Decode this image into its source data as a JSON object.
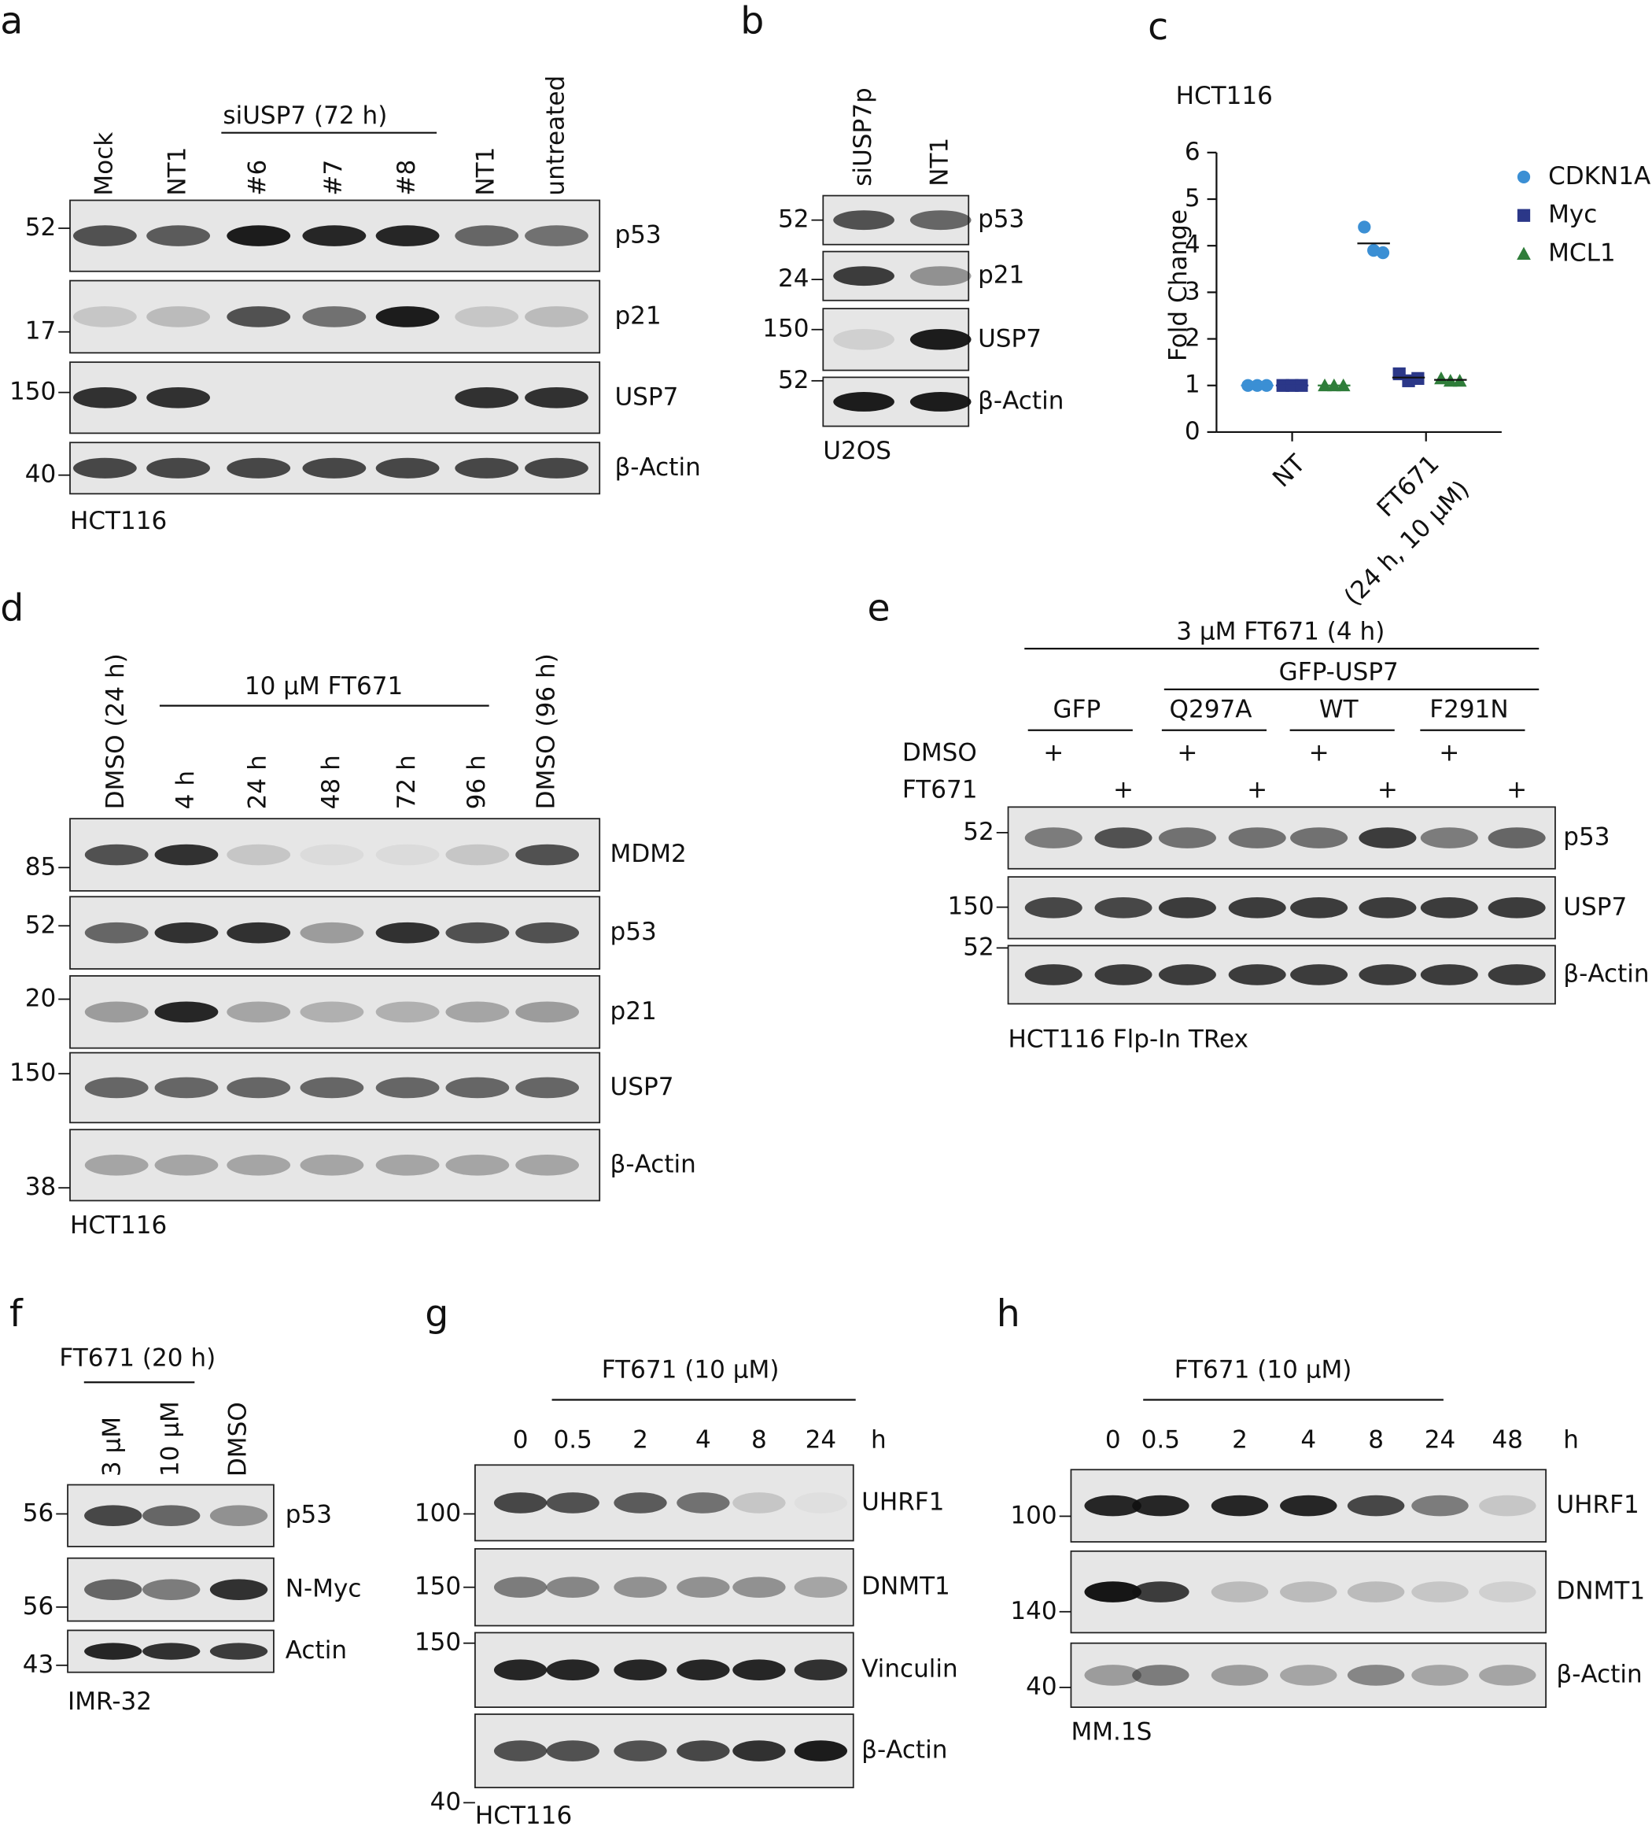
{
  "panels": [
    {
      "letter": "a",
      "lanes": [
        "Mock",
        "NT1",
        "#6",
        "#7",
        "#8",
        "NT1",
        "untreated"
      ],
      "header": "siUSP7 (72 h)",
      "rows": [
        {
          "marker": 52,
          "protein": "p53"
        },
        {
          "marker": 17,
          "protein": "p21"
        },
        {
          "marker": 150,
          "protein": "USP7"
        },
        {
          "marker": 40,
          "protein": "β-Actin"
        }
      ],
      "cell_line": "HCT116"
    },
    {
      "letter": "b",
      "lanes": [
        "siUSP7p",
        "NT1"
      ],
      "rows": [
        {
          "marker": 52,
          "protein": "p53"
        },
        {
          "marker": 24,
          "protein": "p21"
        },
        {
          "marker": 150,
          "protein": "USP7"
        },
        {
          "marker": 52,
          "protein": "β-Actin"
        }
      ],
      "cell_line": "U2OS"
    },
    {
      "letter": "d",
      "lanes": [
        "DMSO (24 h)",
        "4 h",
        "24 h",
        "48 h",
        "72 h",
        "96 h",
        "DMSO (96 h)"
      ],
      "header": "10 μM FT671",
      "rows": [
        {
          "marker": 85,
          "protein": "MDM2"
        },
        {
          "marker": 52,
          "protein": "p53"
        },
        {
          "marker": 20,
          "protein": "p21"
        },
        {
          "marker": 150,
          "protein": "USP7"
        },
        {
          "marker": 38,
          "protein": "β-Actin"
        }
      ],
      "cell_line": "HCT116"
    },
    {
      "letter": "e",
      "header": "3 μM FT671 (4 h)",
      "subheader": "GFP-USP7",
      "groups": [
        "GFP",
        "Q297A",
        "WT",
        "F291N"
      ],
      "treatments": [
        {
          "name": "DMSO",
          "signs": [
            "+",
            "+",
            "+",
            "+"
          ]
        },
        {
          "name": "FT671",
          "signs": [
            "+",
            "+",
            "+",
            "+"
          ]
        }
      ],
      "rows": [
        {
          "marker": 52,
          "protein": "p53"
        },
        {
          "marker": 150,
          "protein": "USP7"
        },
        {
          "marker": 52,
          "protein": "β-Actin"
        }
      ],
      "cell_line": "HCT116 Flp-In TRex"
    },
    {
      "letter": "f",
      "lanes": [
        "3 μM",
        "10 μM",
        "DMSO"
      ],
      "header": "FT671 (20 h)",
      "rows": [
        {
          "marker": 56,
          "protein": "p53"
        },
        {
          "marker": 56,
          "protein": "N-Myc"
        },
        {
          "marker": 43,
          "protein": "Actin"
        }
      ],
      "cell_line": "IMR-32"
    },
    {
      "letter": "g",
      "lanes": [
        "0",
        "0.5",
        "2",
        "4",
        "8",
        "24"
      ],
      "unit": "h",
      "header": "FT671 (10 μM)",
      "rows": [
        {
          "marker": 100,
          "protein": "UHRF1"
        },
        {
          "marker": 150,
          "protein": "DNMT1"
        },
        {
          "marker": 150,
          "protein": "Vinculin"
        },
        {
          "marker": 40,
          "protein": "β-Actin"
        }
      ],
      "cell_line": "HCT116"
    },
    {
      "letter": "h",
      "lanes": [
        "0",
        "0.5",
        "2",
        "4",
        "8",
        "24",
        "48"
      ],
      "unit": "h",
      "header": "FT671 (10 μM)",
      "rows": [
        {
          "marker": 100,
          "protein": "UHRF1"
        },
        {
          "marker": 140,
          "protein": "DNMT1"
        },
        {
          "marker": 40,
          "protein": "β-Actin"
        }
      ],
      "cell_line": "MM.1S"
    }
  ],
  "chart_data": {
    "type": "scatter",
    "label": "c",
    "title": "HCT116",
    "ylabel": "Fold Change",
    "categories": [
      [
        "NT"
      ],
      [
        "FT671",
        "(24 h, 10 μM)"
      ]
    ],
    "series": [
      {
        "name": "CDKN1A",
        "color": "#3b8fd4",
        "values": [
          [
            1,
            1,
            1
          ],
          [
            4.4,
            3.9,
            3.85
          ]
        ],
        "means": [
          1,
          4.05
        ]
      },
      {
        "name": "Myc",
        "color": "#2b3788",
        "values": [
          [
            1,
            1,
            1
          ],
          [
            1.25,
            1.1,
            1.15
          ]
        ],
        "means": [
          1,
          1.17
        ]
      },
      {
        "name": "MCL1",
        "color": "#2f7d3a",
        "values": [
          [
            1,
            1,
            1
          ],
          [
            1.15,
            1.1,
            1.1
          ]
        ],
        "means": [
          1,
          1.12
        ]
      }
    ],
    "ylim": [
      0,
      6
    ],
    "yticks": [
      0,
      1,
      2,
      3,
      4,
      5,
      6
    ],
    "legend": "upper right"
  }
}
